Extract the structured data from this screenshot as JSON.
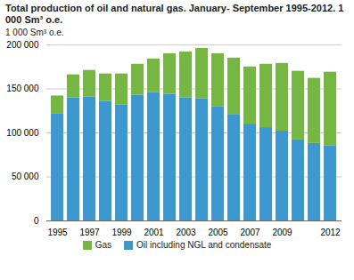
{
  "chart_data": {
    "type": "bar",
    "title": "Total production of oil and natural gas. January- September 1995-2012. 1 000 Sm³ o.e.",
    "y_label": "1 000 Sm³ o.e.",
    "stacked": true,
    "grid": true,
    "legend": "bottom",
    "categories": [
      "1995",
      null,
      "1997",
      null,
      "1999",
      null,
      "2001",
      null,
      "2003",
      null,
      "2005",
      null,
      "2007",
      null,
      "2009",
      null,
      null,
      "2012"
    ],
    "series": [
      {
        "name": "Gas",
        "color": "#76b643",
        "values": [
          20000,
          26000,
          30000,
          31000,
          35000,
          35000,
          38000,
          46000,
          52000,
          57000,
          60000,
          64000,
          65000,
          72000,
          77000,
          78000,
          74000,
          84000
        ]
      },
      {
        "name": "Oil including NGL and condensate",
        "color": "#3e98d0",
        "values": [
          122000,
          140000,
          141000,
          136000,
          132000,
          143000,
          146000,
          144000,
          140000,
          139000,
          130000,
          121000,
          110000,
          106000,
          102000,
          92000,
          88000,
          85000
        ]
      }
    ],
    "ylim": [
      0,
      200000
    ],
    "yticks": [
      0,
      {
        "value": 50000,
        "label": "50 000"
      },
      {
        "value": 100000,
        "label": "100 000"
      },
      {
        "value": 150000,
        "label": "150 000"
      },
      {
        "value": 200000,
        "label": "200 000"
      }
    ]
  }
}
